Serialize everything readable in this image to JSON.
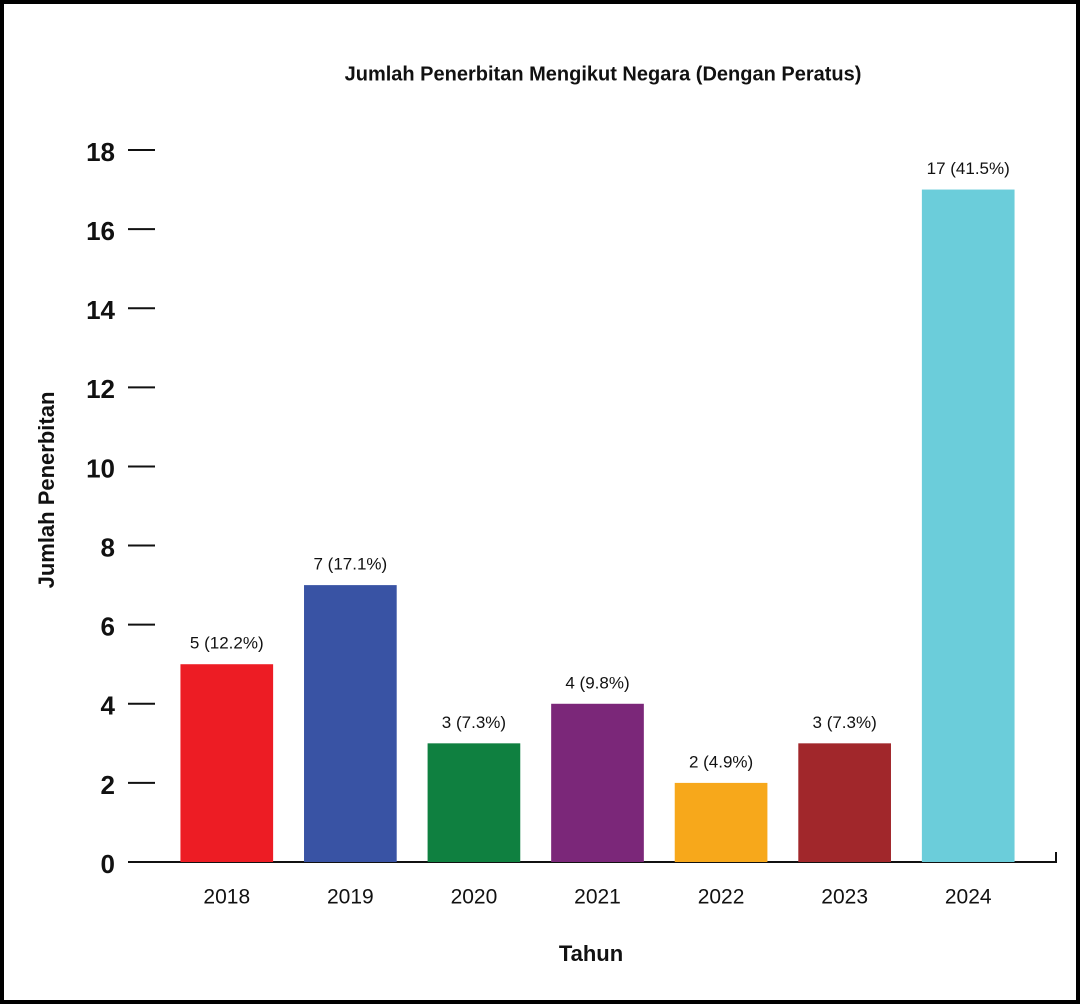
{
  "chart_data": {
    "type": "bar",
    "title": "Jumlah Penerbitan Mengikut Negara (Dengan Peratus)",
    "xlabel": "Tahun",
    "ylabel": "Jumlah Penerbitan",
    "categories": [
      "2018",
      "2019",
      "2020",
      "2021",
      "2022",
      "2023",
      "2024"
    ],
    "values": [
      5,
      7,
      3,
      4,
      2,
      3,
      17
    ],
    "value_labels": [
      "5 (12.2%)",
      "7 (17.1%)",
      "3 (7.3%)",
      "4 (9.8%)",
      "2 (4.9%)",
      "3 (7.3%)",
      "17 (41.5%)"
    ],
    "colors": [
      "#ed1c24",
      "#3953a4",
      "#0f8040",
      "#7b2779",
      "#f7a81b",
      "#a1272b",
      "#6bcdda"
    ],
    "ylim": [
      0,
      18
    ],
    "yticks": [
      0,
      2,
      4,
      6,
      8,
      10,
      12,
      14,
      16,
      18
    ]
  }
}
